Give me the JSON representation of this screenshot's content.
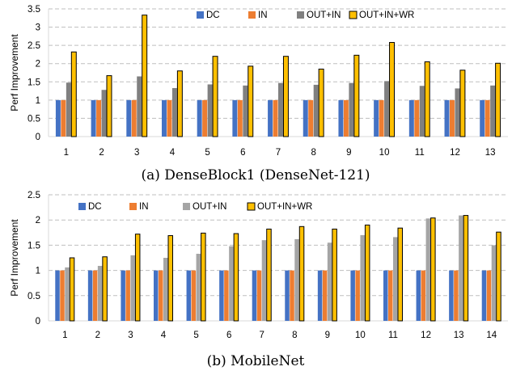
{
  "colors": {
    "DC": "#4472C4",
    "IN": "#ED7D31",
    "OUT_IN_top": "#808080",
    "OUT_IN_bottom": "#A5A5A5",
    "OUT_IN_WR": "#FFC000",
    "bar_outline": "#000000",
    "grid": "#BFBFBF"
  },
  "chart_data": [
    {
      "type": "bar",
      "title": "(a) DenseBlock1 (DenseNet-121)",
      "xlabel": "",
      "ylabel": "Perf Improvement",
      "ylim": [
        0,
        3.5
      ],
      "yticks": [
        "0",
        "0.5",
        "1",
        "1.5",
        "2",
        "2.5",
        "3",
        "3.5"
      ],
      "categories": [
        "1",
        "2",
        "3",
        "4",
        "5",
        "6",
        "7",
        "8",
        "9",
        "10",
        "11",
        "12",
        "13"
      ],
      "grid": "horizontal dashed",
      "legend_position": "top",
      "series": [
        {
          "name": "DC",
          "values": [
            1,
            1,
            1,
            1,
            1,
            1,
            1,
            1,
            1,
            1,
            1,
            1,
            1
          ]
        },
        {
          "name": "IN",
          "values": [
            1,
            1,
            1,
            1,
            1,
            1,
            1,
            1,
            1,
            1,
            1,
            1,
            1
          ]
        },
        {
          "name": "OUT+IN",
          "values": [
            1.48,
            1.28,
            1.65,
            1.33,
            1.43,
            1.4,
            1.47,
            1.42,
            1.47,
            1.52,
            1.39,
            1.32,
            1.4
          ]
        },
        {
          "name": "OUT+IN+WR",
          "values": [
            2.32,
            1.67,
            3.33,
            1.8,
            2.2,
            1.93,
            2.2,
            1.85,
            2.23,
            2.58,
            2.05,
            1.82,
            2.01
          ]
        }
      ]
    },
    {
      "type": "bar",
      "title": "(b) MobileNet",
      "xlabel": "",
      "ylabel": "Perf Improvement",
      "ylim": [
        0,
        2.5
      ],
      "yticks": [
        "0",
        "0.5",
        "1",
        "1.5",
        "2",
        "2.5"
      ],
      "categories": [
        "1",
        "2",
        "3",
        "4",
        "5",
        "6",
        "7",
        "8",
        "9",
        "10",
        "11",
        "12",
        "13",
        "14"
      ],
      "grid": "horizontal dashed",
      "legend_position": "top",
      "series": [
        {
          "name": "DC",
          "values": [
            1,
            1,
            1,
            1,
            1,
            1,
            1,
            1,
            1,
            1,
            1,
            1,
            1,
            1
          ]
        },
        {
          "name": "IN",
          "values": [
            1,
            1,
            1,
            1,
            1,
            1,
            1,
            1,
            1,
            1,
            1,
            1,
            1,
            1
          ]
        },
        {
          "name": "OUT+IN",
          "values": [
            1.06,
            1.09,
            1.3,
            1.25,
            1.33,
            1.48,
            1.6,
            1.62,
            1.55,
            1.7,
            1.66,
            2.03,
            2.09,
            1.5
          ]
        },
        {
          "name": "OUT+IN+WR",
          "values": [
            1.25,
            1.27,
            1.72,
            1.69,
            1.74,
            1.73,
            1.82,
            1.87,
            1.82,
            1.9,
            1.84,
            2.04,
            2.09,
            1.76
          ]
        }
      ]
    }
  ]
}
